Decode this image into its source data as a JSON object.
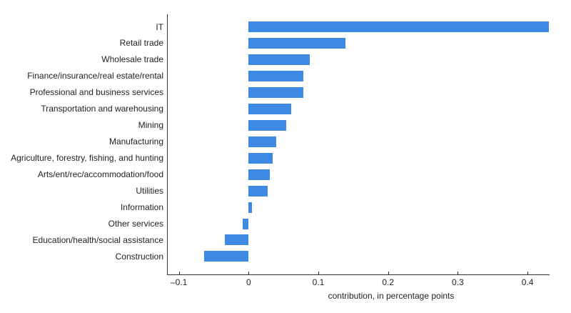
{
  "chart_data": {
    "type": "bar",
    "orientation": "horizontal",
    "title": "",
    "xlabel": "contribution, in percentage points",
    "ylabel": "",
    "xlim": [
      -0.105,
      0.432
    ],
    "xticks": [
      -0.1,
      0,
      0.1,
      0.2,
      0.3,
      0.4
    ],
    "xtick_labels": [
      "–0.1",
      "0",
      "0.1",
      "0.2",
      "0.3",
      "0.4"
    ],
    "grid": false,
    "legend": null,
    "bar_color": "#3e8ae2",
    "categories": [
      "IT",
      "Retail trade",
      "Wholesale trade",
      "Finance/insurance/real estate/rental",
      "Professional and business services",
      "Transportation and warehousing",
      "Mining",
      "Manufacturing",
      "Agriculture, forestry, fishing, and hunting",
      "Arts/ent/rec/accommodation/food",
      "Utilities",
      "Information",
      "Other services",
      "Education/health/social assistance",
      "Construction"
    ],
    "values": [
      0.431,
      0.139,
      0.088,
      0.079,
      0.078,
      0.061,
      0.054,
      0.04,
      0.035,
      0.03,
      0.027,
      0.005,
      -0.008,
      -0.034,
      -0.064
    ]
  }
}
